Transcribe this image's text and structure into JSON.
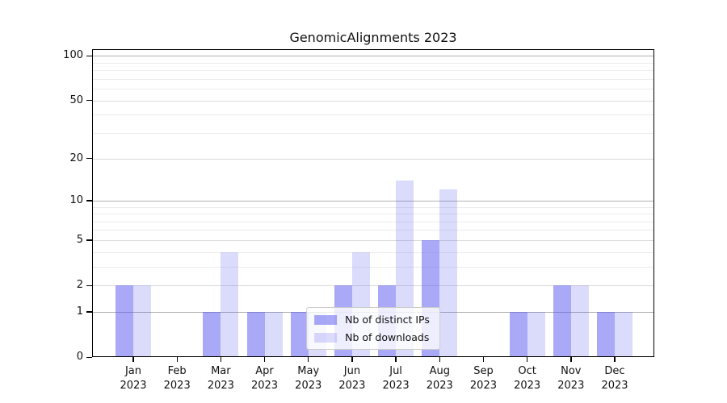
{
  "chart_data": {
    "type": "bar",
    "title": "GenomicAlignments 2023",
    "categories": [
      "Jan",
      "Feb",
      "Mar",
      "Apr",
      "May",
      "Jun",
      "Jul",
      "Aug",
      "Sep",
      "Oct",
      "Nov",
      "Dec"
    ],
    "year": "2023",
    "series": [
      {
        "name": "Nb of distinct IPs",
        "color": "rgba(87,87,239,0.51)",
        "values": [
          2,
          0,
          1,
          1,
          1,
          2,
          2,
          5,
          0,
          1,
          2,
          1
        ]
      },
      {
        "name": "Nb of downloads",
        "color": "rgba(87,87,239,0.21)",
        "values": [
          2,
          0,
          4,
          1,
          1,
          4,
          14,
          12,
          0,
          1,
          2,
          1
        ]
      }
    ],
    "xlabel": "",
    "ylabel": "",
    "yscale": "log1p",
    "ylim": [
      0,
      111
    ],
    "yticks": [
      0,
      1,
      2,
      5,
      10,
      20,
      50,
      100
    ],
    "decade_gridlines": [
      1,
      10,
      100
    ],
    "minor_gridlines": [
      3,
      4,
      6,
      7,
      8,
      9,
      30,
      40,
      60,
      70,
      80,
      90
    ],
    "legend_position": "lower center",
    "grid": "horizontal",
    "colors": {
      "decade_grid": "#b0b0b0",
      "labeled_grid": "#dadada",
      "minor_grid": "#ececec",
      "axis": "#000000",
      "background": "#ffffff"
    }
  }
}
